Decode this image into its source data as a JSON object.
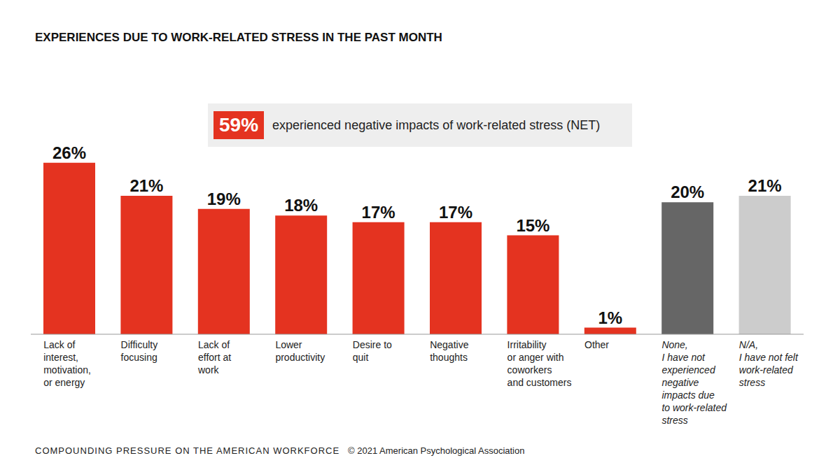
{
  "chart_data": {
    "type": "bar",
    "title": "EXPERIENCES DUE TO WORK-RELATED STRESS IN THE PAST MONTH",
    "categories": [
      "Lack of\ninterest,\nmotivation,\nor energy",
      "Difficulty\nfocusing",
      "Lack of\neffort at\nwork",
      "Lower\nproductivity",
      "Desire to\nquit",
      "Negative\nthoughts",
      "Irritability\nor anger with\ncoworkers\nand customers",
      "Other",
      "None,\nI have not\nexperienced\nnegative\nimpacts due\nto work-related\nstress",
      "N/A,\nI have not felt\nwork-related\nstress"
    ],
    "values": [
      26,
      21,
      19,
      18,
      17,
      17,
      15,
      1,
      20,
      21
    ],
    "value_labels": [
      "26%",
      "21%",
      "19%",
      "18%",
      "17%",
      "17%",
      "15%",
      "1%",
      "20%",
      "21%"
    ],
    "colors": [
      "#e43320",
      "#e43320",
      "#e43320",
      "#e43320",
      "#e43320",
      "#e43320",
      "#e43320",
      "#e43320",
      "#666666",
      "#cccccc"
    ],
    "ylim": [
      0,
      30
    ],
    "grid": false,
    "data_labels": true,
    "tick_labels": "x",
    "annotations": [
      {
        "value": 59,
        "label": "59%",
        "text": "experienced negative impacts of work-related stress (NET)"
      }
    ],
    "footer": [
      "COMPOUNDING PRESSURE ON THE AMERICAN WORKFORCE",
      "© 2021 American Psychological Association"
    ]
  }
}
